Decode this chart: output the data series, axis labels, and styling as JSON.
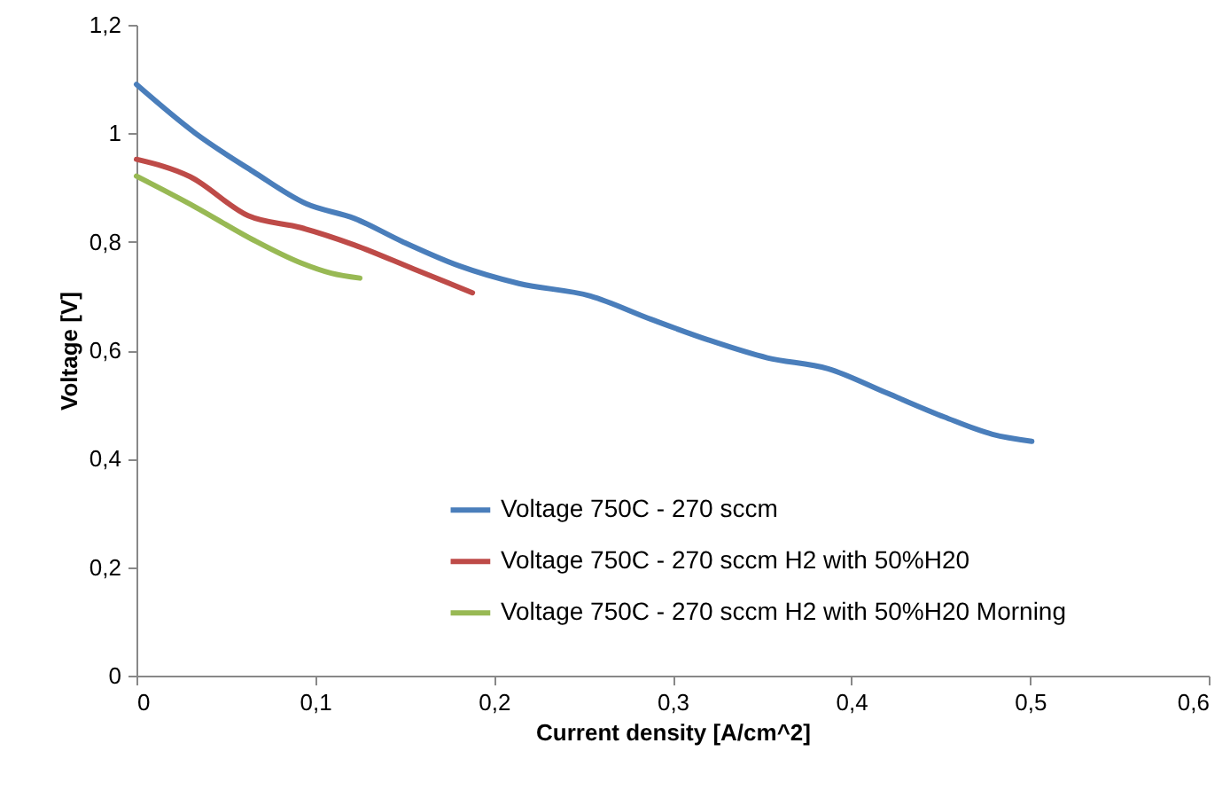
{
  "chart_data": {
    "type": "line",
    "xlabel": "Current density [A/cm^2]",
    "ylabel": "Voltage [V]",
    "xlim": [
      0,
      0.6
    ],
    "ylim": [
      0,
      1.2
    ],
    "xticks": [
      0,
      {
        "value": 0.1,
        "label": "0,1"
      },
      {
        "value": 0.2,
        "label": "0,2"
      },
      {
        "value": 0.3,
        "label": "0,3"
      },
      {
        "value": 0.4,
        "label": "0,4"
      },
      {
        "value": 0.5,
        "label": "0,5"
      },
      {
        "value": 0.6,
        "label": "0,6"
      }
    ],
    "yticks": [
      0,
      {
        "value": 0.2,
        "label": "0,2"
      },
      {
        "value": 0.4,
        "label": "0,4"
      },
      {
        "value": 0.6,
        "label": "0,6"
      },
      {
        "value": 0.8,
        "label": "0,8"
      },
      1,
      {
        "value": 1.2,
        "label": "1,2"
      }
    ],
    "grid": false,
    "legend": "bottom right",
    "marker": "none",
    "line_style": "solid",
    "series": [
      {
        "name": "Voltage 750C - 270 sccm",
        "color": "#4a7ebb",
        "x": [
          0,
          0.033,
          0.065,
          0.095,
          0.122,
          0.149,
          0.181,
          0.214,
          0.254,
          0.288,
          0.32,
          0.353,
          0.387,
          0.42,
          0.452,
          0.479,
          0.501
        ],
        "values": [
          1.09,
          1.0,
          0.93,
          0.87,
          0.843,
          0.8,
          0.755,
          0.723,
          0.7,
          0.657,
          0.619,
          0.586,
          0.566,
          0.521,
          0.477,
          0.445,
          0.432
        ]
      },
      {
        "name": "Voltage 750C - 270 sccm H2 with 50%H20",
        "color": "#be4b48",
        "x": [
          0,
          0.03,
          0.0625,
          0.092,
          0.122,
          0.155,
          0.188
        ],
        "values": [
          0.952,
          0.92,
          0.848,
          0.826,
          0.794,
          0.75,
          0.706
        ]
      },
      {
        "name": "Voltage 750C - 270 sccm H2 with 50%H20 Morning",
        "color": "#98b954",
        "x": [
          0,
          0.033,
          0.065,
          0.092,
          0.109,
          0.125
        ],
        "values": [
          0.921,
          0.864,
          0.804,
          0.761,
          0.742,
          0.733
        ]
      }
    ]
  }
}
